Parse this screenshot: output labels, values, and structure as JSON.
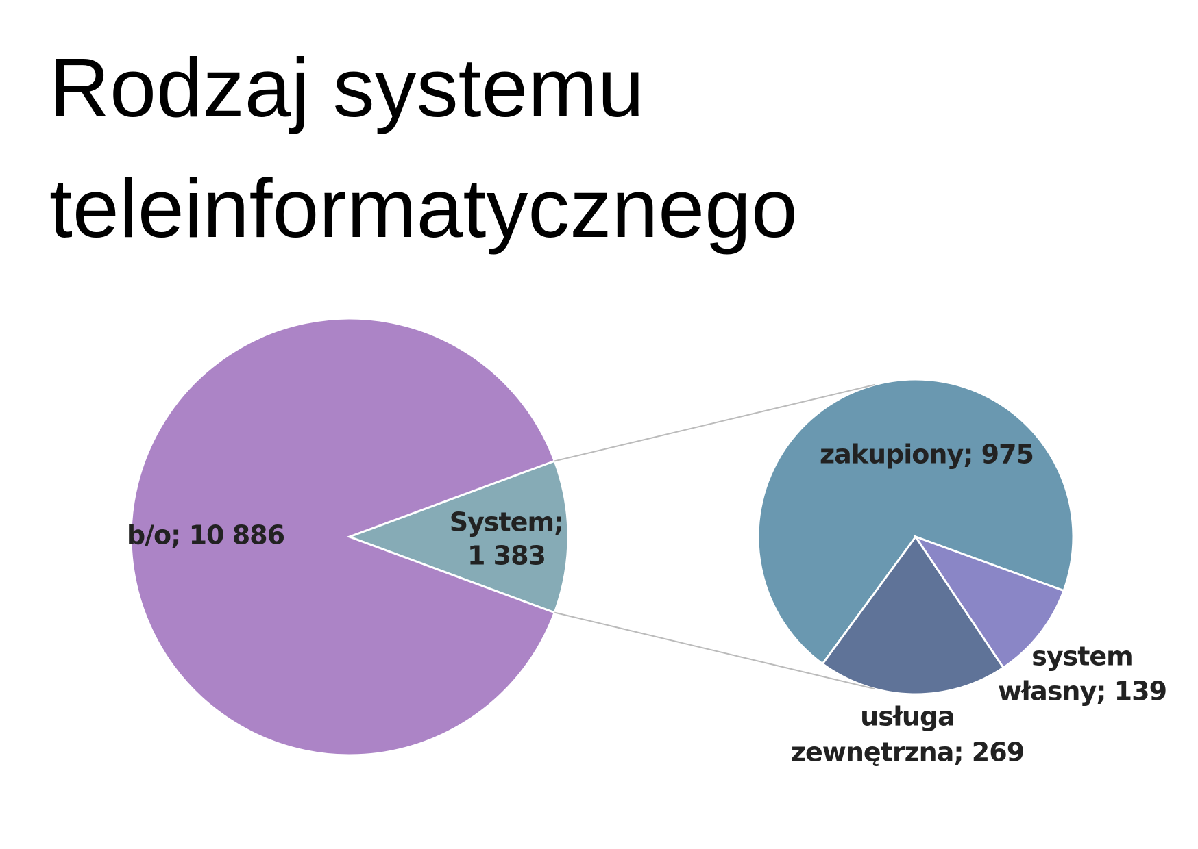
{
  "chart_data": {
    "type": "pie_of_pie",
    "title": "Rodzaj systemu teleinformatycznego",
    "pies": [
      {
        "values": [
          10886,
          1383
        ],
        "value_labels": [
          [
            "b/o; 10 886"
          ],
          [
            "System;",
            "1 383"
          ]
        ],
        "colors": [
          "#ac84c6",
          "#86abb6"
        ]
      },
      {
        "values": [
          975,
          269,
          139
        ],
        "value_labels": [
          [
            "zakupiony; 975"
          ],
          [
            "usługa",
            "zewnętrzna; 269"
          ],
          [
            "system",
            "własny; 139"
          ]
        ],
        "colors": [
          "#6a98b0",
          "#5f7398",
          "#8a86c6"
        ]
      }
    ]
  }
}
